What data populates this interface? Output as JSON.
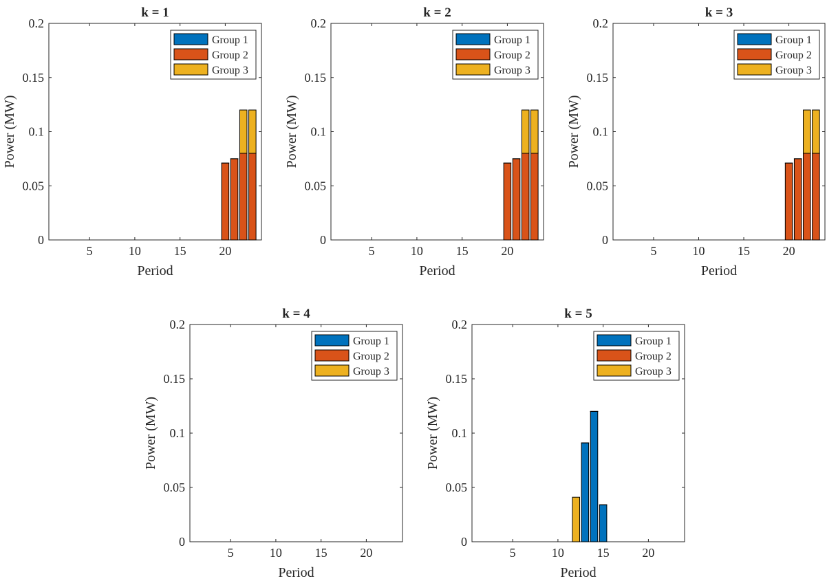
{
  "colors": {
    "group1": "#0072BD",
    "group2": "#D95319",
    "group3": "#EDB120",
    "axis": "#262626"
  },
  "chart_data": [
    {
      "type": "bar",
      "stacked": true,
      "title": "k = 1",
      "xlabel": "Period",
      "ylabel": "Power (MW)",
      "xlim": [
        0.5,
        24
      ],
      "ylim": [
        0,
        0.2
      ],
      "xticks": [
        5,
        10,
        15,
        20
      ],
      "yticks": [
        0,
        0.05,
        0.1,
        0.15,
        0.2
      ],
      "ytick_labels": [
        "0",
        "0.05",
        "0.1",
        "0.15",
        "0.2"
      ],
      "legend_location": "top-right",
      "x": [
        20,
        21,
        22,
        23
      ],
      "series": [
        {
          "name": "Group 1",
          "values": [
            0,
            0,
            0,
            0
          ]
        },
        {
          "name": "Group 2",
          "values": [
            0.071,
            0.075,
            0.08,
            0.08
          ]
        },
        {
          "name": "Group 3",
          "values": [
            0,
            0,
            0.04,
            0.04
          ]
        }
      ]
    },
    {
      "type": "bar",
      "stacked": true,
      "title": "k = 2",
      "xlabel": "Period",
      "ylabel": "Power (MW)",
      "xlim": [
        0.5,
        24
      ],
      "ylim": [
        0,
        0.2
      ],
      "xticks": [
        5,
        10,
        15,
        20
      ],
      "yticks": [
        0,
        0.05,
        0.1,
        0.15,
        0.2
      ],
      "ytick_labels": [
        "0",
        "0.05",
        "0.1",
        "0.15",
        "0.2"
      ],
      "legend_location": "top-right",
      "x": [
        20,
        21,
        22,
        23
      ],
      "series": [
        {
          "name": "Group 1",
          "values": [
            0,
            0,
            0,
            0
          ]
        },
        {
          "name": "Group 2",
          "values": [
            0.071,
            0.075,
            0.08,
            0.08
          ]
        },
        {
          "name": "Group 3",
          "values": [
            0,
            0,
            0.04,
            0.04
          ]
        }
      ]
    },
    {
      "type": "bar",
      "stacked": true,
      "title": "k = 3",
      "xlabel": "Period",
      "ylabel": "Power (MW)",
      "xlim": [
        0.5,
        24
      ],
      "ylim": [
        0,
        0.2
      ],
      "xticks": [
        5,
        10,
        15,
        20
      ],
      "yticks": [
        0,
        0.05,
        0.1,
        0.15,
        0.2
      ],
      "ytick_labels": [
        "0",
        "0.05",
        "0.1",
        "0.15",
        "0.2"
      ],
      "legend_location": "top-right",
      "x": [
        20,
        21,
        22,
        23
      ],
      "series": [
        {
          "name": "Group 1",
          "values": [
            0,
            0,
            0,
            0
          ]
        },
        {
          "name": "Group 2",
          "values": [
            0.071,
            0.075,
            0.08,
            0.08
          ]
        },
        {
          "name": "Group 3",
          "values": [
            0,
            0,
            0.04,
            0.04
          ]
        }
      ]
    },
    {
      "type": "bar",
      "stacked": true,
      "title": "k = 4",
      "xlabel": "Period",
      "ylabel": "Power (MW)",
      "xlim": [
        0.5,
        24
      ],
      "ylim": [
        0,
        0.2
      ],
      "xticks": [
        5,
        10,
        15,
        20
      ],
      "yticks": [
        0,
        0.05,
        0.1,
        0.15,
        0.2
      ],
      "ytick_labels": [
        "0",
        "0.05",
        "0.1",
        "0.15",
        "0.2"
      ],
      "legend_location": "top-right",
      "x": [],
      "series": [
        {
          "name": "Group 1",
          "values": []
        },
        {
          "name": "Group 2",
          "values": []
        },
        {
          "name": "Group 3",
          "values": []
        }
      ]
    },
    {
      "type": "bar",
      "stacked": true,
      "title": "k = 5",
      "xlabel": "Period",
      "ylabel": "Power (MW)",
      "xlim": [
        0.5,
        24
      ],
      "ylim": [
        0,
        0.2
      ],
      "xticks": [
        5,
        10,
        15,
        20
      ],
      "yticks": [
        0,
        0.05,
        0.1,
        0.15,
        0.2
      ],
      "ytick_labels": [
        "0",
        "0.05",
        "0.1",
        "0.15",
        "0.2"
      ],
      "legend_location": "top-right",
      "x": [
        12,
        13,
        14,
        15
      ],
      "series": [
        {
          "name": "Group 1",
          "values": [
            0,
            0.091,
            0.12,
            0.034
          ]
        },
        {
          "name": "Group 2",
          "values": [
            0,
            0,
            0,
            0
          ]
        },
        {
          "name": "Group 3",
          "values": [
            0.041,
            0,
            0,
            0
          ]
        }
      ]
    }
  ]
}
